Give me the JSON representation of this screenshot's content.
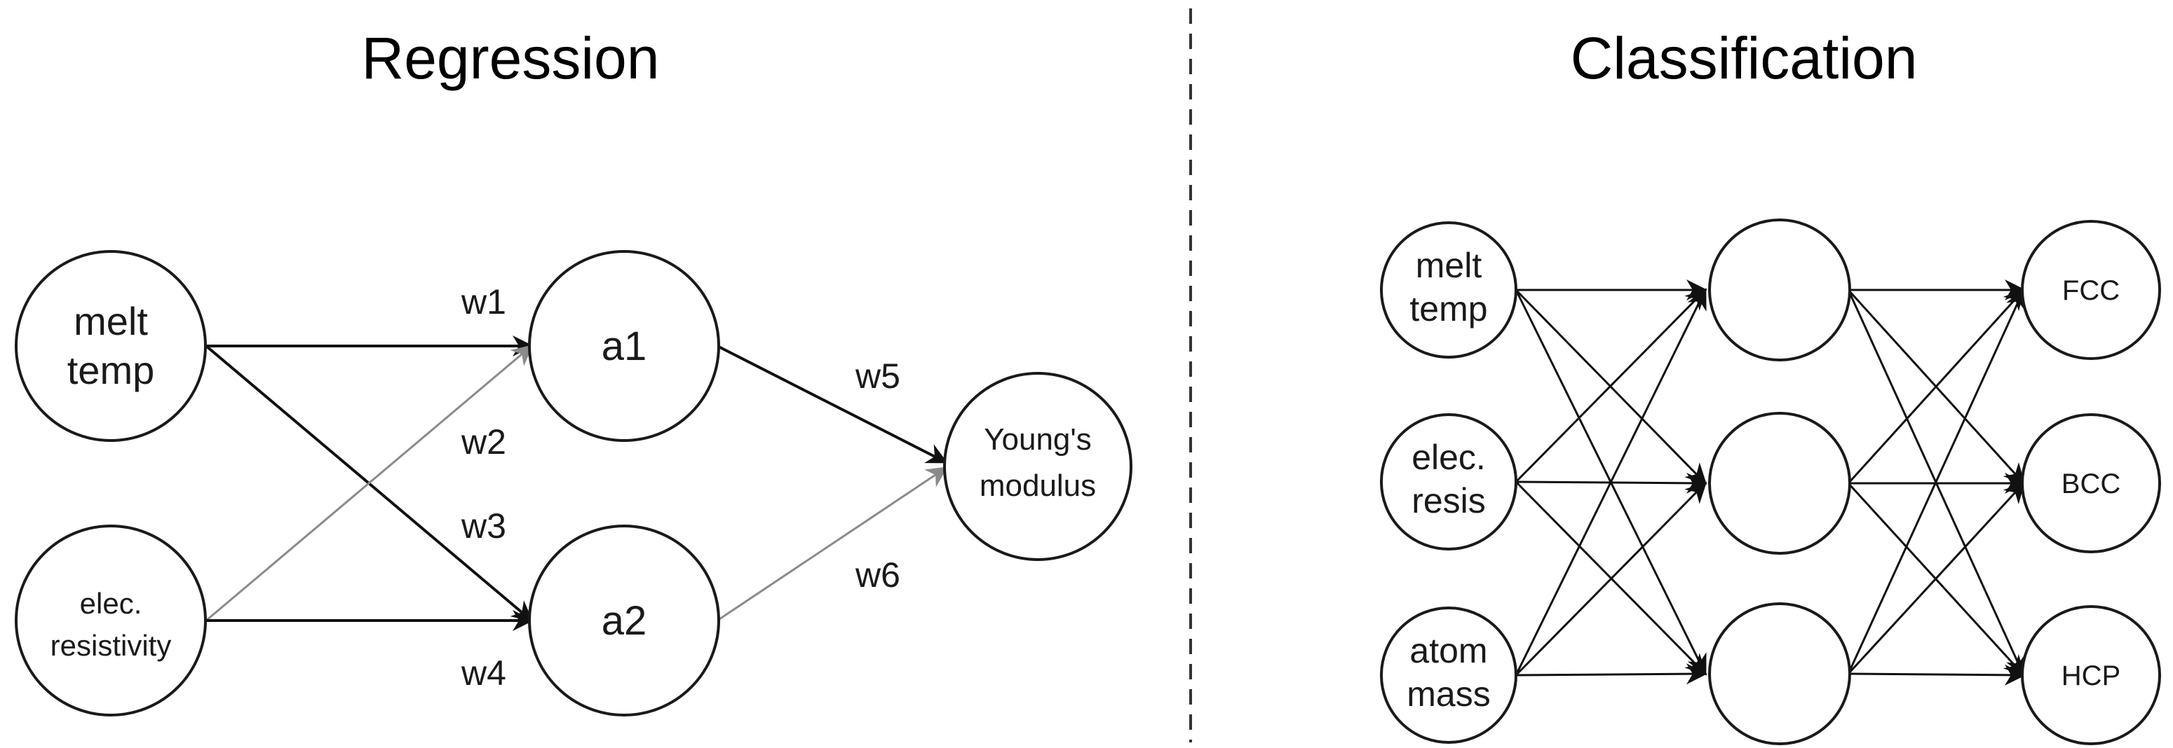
{
  "regression": {
    "title": "Regression",
    "inputs": {
      "melt_temp": [
        "melt",
        "temp"
      ],
      "elec_resistivity": [
        "elec.",
        "resistivity"
      ]
    },
    "hidden": {
      "a1": "a1",
      "a2": "a2"
    },
    "output": [
      "Young's",
      "modulus"
    ],
    "weights": {
      "w1": "w1",
      "w2": "w2",
      "w3": "w3",
      "w4": "w4",
      "w5": "w5",
      "w6": "w6"
    }
  },
  "classification": {
    "title": "Classification",
    "inputs": {
      "melt_temp": [
        "melt",
        "temp"
      ],
      "elec_resis": [
        "elec.",
        "resis"
      ],
      "atom_mass": [
        "atom",
        "mass"
      ]
    },
    "outputs": {
      "fcc": "FCC",
      "bcc": "BCC",
      "hcp": "HCP"
    }
  },
  "colors": {
    "strong_edge": "#111111",
    "light_edge": "#8a8a8a",
    "node_stroke": "#1a1a1a",
    "divider": "#333333"
  }
}
